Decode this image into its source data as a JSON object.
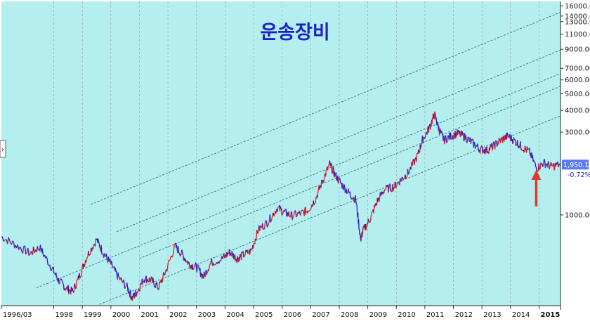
{
  "chart_data": {
    "type": "line",
    "title": "운송장비",
    "y_scale": "log",
    "ylim": [
      300,
      17000
    ],
    "x_range": [
      "1996-03",
      "2015-10"
    ],
    "background_color": "#b4eeee",
    "price_up_color": "#e0201e",
    "price_down_color": "#1a1ad8",
    "channel_line_color": "#2b6b6b",
    "arrow_color": "#e03a2a",
    "x_tick_labels": [
      "1996/03",
      "1998",
      "1999",
      "2000",
      "2001",
      "2002",
      "2003",
      "2004",
      "2005",
      "2006",
      "2007",
      "2008",
      "2009",
      "2010",
      "2011",
      "2012",
      "2013",
      "2014",
      "2015"
    ],
    "y_tick_labels": [
      "16000.00",
      "14000.00",
      "13000.00",
      "11000.00",
      "9000.00",
      "7000.00",
      "6000.00",
      "5000.00",
      "4000.00",
      "3000.00",
      "1000.00"
    ],
    "last_value_label": "1,950.15",
    "change_label": "-0.72%",
    "series": [
      {
        "x": [
          "1996-03",
          "1996-09",
          "1997-03",
          "1997-07",
          "1997-12",
          "1998-03",
          "1998-06",
          "1998-09",
          "1998-12",
          "1999-03",
          "1999-07",
          "1999-10",
          "2000-01",
          "2000-04",
          "2000-08",
          "2000-10",
          "2000-12",
          "2001-03",
          "2001-06",
          "2001-09",
          "2001-12",
          "2002-04",
          "2002-07",
          "2002-10",
          "2003-01",
          "2003-04",
          "2003-07",
          "2003-12",
          "2004-03",
          "2004-06",
          "2004-08",
          "2004-12",
          "2005-03",
          "2005-07",
          "2005-11",
          "2006-02",
          "2006-05",
          "2006-09",
          "2006-12",
          "2007-03",
          "2007-06",
          "2007-09",
          "2007-11",
          "2008-02",
          "2008-05",
          "2008-08",
          "2008-10",
          "2008-11",
          "2009-02",
          "2009-05",
          "2009-08",
          "2009-12",
          "2010-03",
          "2010-06",
          "2010-10",
          "2010-12",
          "2011-03",
          "2011-05",
          "2011-07",
          "2011-09",
          "2011-12",
          "2012-03",
          "2012-06",
          "2012-09",
          "2012-12",
          "2013-03",
          "2013-06",
          "2013-09",
          "2013-12",
          "2014-03",
          "2014-06",
          "2014-09",
          "2014-12",
          "2015-03",
          "2015-06",
          "2015-10"
        ],
        "y": [
          750,
          670,
          600,
          650,
          500,
          420,
          380,
          360,
          450,
          580,
          720,
          600,
          520,
          440,
          380,
          330,
          360,
          430,
          420,
          380,
          470,
          660,
          590,
          520,
          500,
          440,
          530,
          560,
          610,
          560,
          580,
          620,
          820,
          910,
          1100,
          1030,
          990,
          1020,
          1070,
          1230,
          1570,
          1960,
          1720,
          1500,
          1340,
          1220,
          720,
          810,
          950,
          1200,
          1400,
          1450,
          1600,
          1750,
          2200,
          2700,
          3200,
          3800,
          3100,
          2700,
          2850,
          2950,
          2800,
          2600,
          2400,
          2350,
          2500,
          2700,
          2850,
          2650,
          2450,
          2300,
          1850,
          2000,
          1900,
          1950
        ]
      }
    ]
  }
}
